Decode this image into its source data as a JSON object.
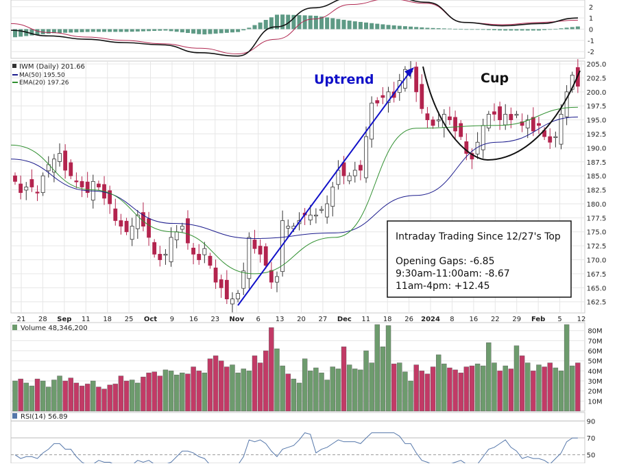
{
  "colors": {
    "up": "#6a9a6a",
    "down": "#b3244e",
    "volume_up": "#6d9b6d",
    "volume_down": "#c23a66",
    "ma50": "#1a1a8c",
    "ema20": "#2f8f2f",
    "macd": "#111111",
    "signal": "#b0264f",
    "histogram": "#5e9a85",
    "rsi": "#5577aa",
    "annotation_blue": "#1010c8",
    "grid": "#e6e6e6",
    "panel_border": "#c8c8c8"
  },
  "chart_data": [
    {
      "type": "candlestick",
      "panel": "price",
      "legend": {
        "symbol": "IWM (Daily) 201.66",
        "ma50": "MA(50) 195.50",
        "ema20": "EMA(20) 197.26"
      },
      "ylim": [
        160.5,
        205.5
      ],
      "yticks": [
        205.0,
        202.5,
        200.0,
        197.5,
        195.0,
        192.5,
        190.0,
        187.5,
        185.0,
        182.5,
        180.0,
        177.5,
        175.0,
        172.5,
        170.0,
        167.5,
        165.0,
        162.5
      ],
      "x_labels": [
        "21",
        "28",
        "Sep",
        "11",
        "18",
        "25",
        "Oct",
        "9",
        "16",
        "23",
        "Nov",
        "6",
        "13",
        "20",
        "27",
        "Dec",
        "11",
        "18",
        "26",
        "2024",
        "8",
        "16",
        "22",
        "29",
        "Feb",
        "5",
        "12"
      ],
      "x_label_bold": [
        "Sep",
        "Oct",
        "Nov",
        "Dec",
        "2024",
        "Feb"
      ],
      "approx_daily_closes": [
        184,
        182,
        183,
        183,
        182,
        185,
        187,
        188,
        189,
        186,
        185,
        184,
        183,
        182,
        184,
        183,
        181,
        180,
        177,
        176,
        175,
        176,
        178,
        176,
        174,
        171,
        170,
        171,
        174,
        175,
        176,
        173,
        171,
        170,
        172,
        169,
        166,
        165,
        163,
        163,
        164,
        168,
        174,
        172,
        171,
        169,
        166,
        167,
        177,
        176,
        176,
        177,
        178,
        178,
        178,
        179,
        180,
        183,
        186,
        185,
        185,
        186,
        186,
        192,
        198,
        198,
        199,
        200,
        199,
        202,
        204,
        204,
        200,
        197,
        195,
        194,
        195,
        196,
        195,
        193,
        192,
        189,
        188,
        191,
        194,
        196,
        196,
        195,
        196,
        195,
        196,
        194,
        195,
        193,
        194,
        192,
        191,
        192,
        196,
        200,
        203,
        201
      ],
      "ma50": [
        188.0,
        182.3,
        176.5,
        173.8,
        174.8,
        181.5,
        191.0,
        195.5
      ],
      "ema20": [
        190.5,
        182.5,
        175.0,
        167.5,
        174.0,
        193.5,
        194.0,
        197.26
      ],
      "annotations": {
        "uptrend": "Uptrend",
        "cup": "Cup",
        "box_title": "Intraday Trading Since 12/27's Top",
        "box_lines": [
          "Opening Gaps:  -6.85",
          "9:30am-11:00am:  -8.67",
          "11am-4pm:  +12.45"
        ]
      }
    },
    {
      "type": "bar",
      "panel": "volume",
      "legend": "Volume 48,346,200",
      "yticks": [
        "80M",
        "70M",
        "60M",
        "50M",
        "40M",
        "30M",
        "20M",
        "10M"
      ],
      "ylim": [
        0,
        88
      ],
      "approx_values_millions": [
        30,
        32,
        28,
        25,
        32,
        30,
        24,
        31,
        35,
        30,
        33,
        28,
        25,
        27,
        30,
        24,
        22,
        26,
        27,
        35,
        30,
        31,
        28,
        34,
        38,
        39,
        35,
        41,
        40,
        36,
        38,
        37,
        44,
        40,
        38,
        52,
        55,
        50,
        44,
        46,
        38,
        42,
        40,
        55,
        48,
        60,
        83,
        62,
        45,
        37,
        32,
        28,
        52,
        40,
        43,
        38,
        31,
        44,
        42,
        64,
        46,
        42,
        41,
        60,
        48,
        86,
        64,
        85,
        47,
        48,
        39,
        30,
        46,
        40,
        37,
        44,
        56,
        47,
        43,
        41,
        38,
        44,
        45,
        47,
        45,
        68,
        48,
        40,
        45,
        42,
        65,
        55,
        48,
        40,
        46,
        44,
        48,
        43,
        40,
        86,
        45,
        48
      ]
    },
    {
      "type": "line",
      "panel": "macd",
      "yticks": [
        "2",
        "1",
        "0",
        "-1",
        "-2"
      ],
      "ylim": [
        -2.6,
        2.6
      ],
      "approx_macd": [
        -0.1,
        -0.6,
        -0.9,
        -1.2,
        -1.4,
        -2.1,
        -2.4,
        0.2,
        1.9,
        2.8,
        3.0,
        2.4,
        0.6,
        0.3,
        0.5,
        1.0
      ],
      "approx_signal": [
        0.5,
        -0.3,
        -0.7,
        -1.0,
        -1.3,
        -1.7,
        -2.2,
        -0.9,
        0.9,
        2.2,
        2.7,
        2.3,
        0.6,
        0.4,
        0.6,
        0.8
      ]
    },
    {
      "type": "line",
      "panel": "rsi",
      "legend": "RSI(14) 56.89",
      "yticks": [
        "90",
        "70",
        "50"
      ],
      "ylim": [
        40,
        100
      ]
    }
  ]
}
